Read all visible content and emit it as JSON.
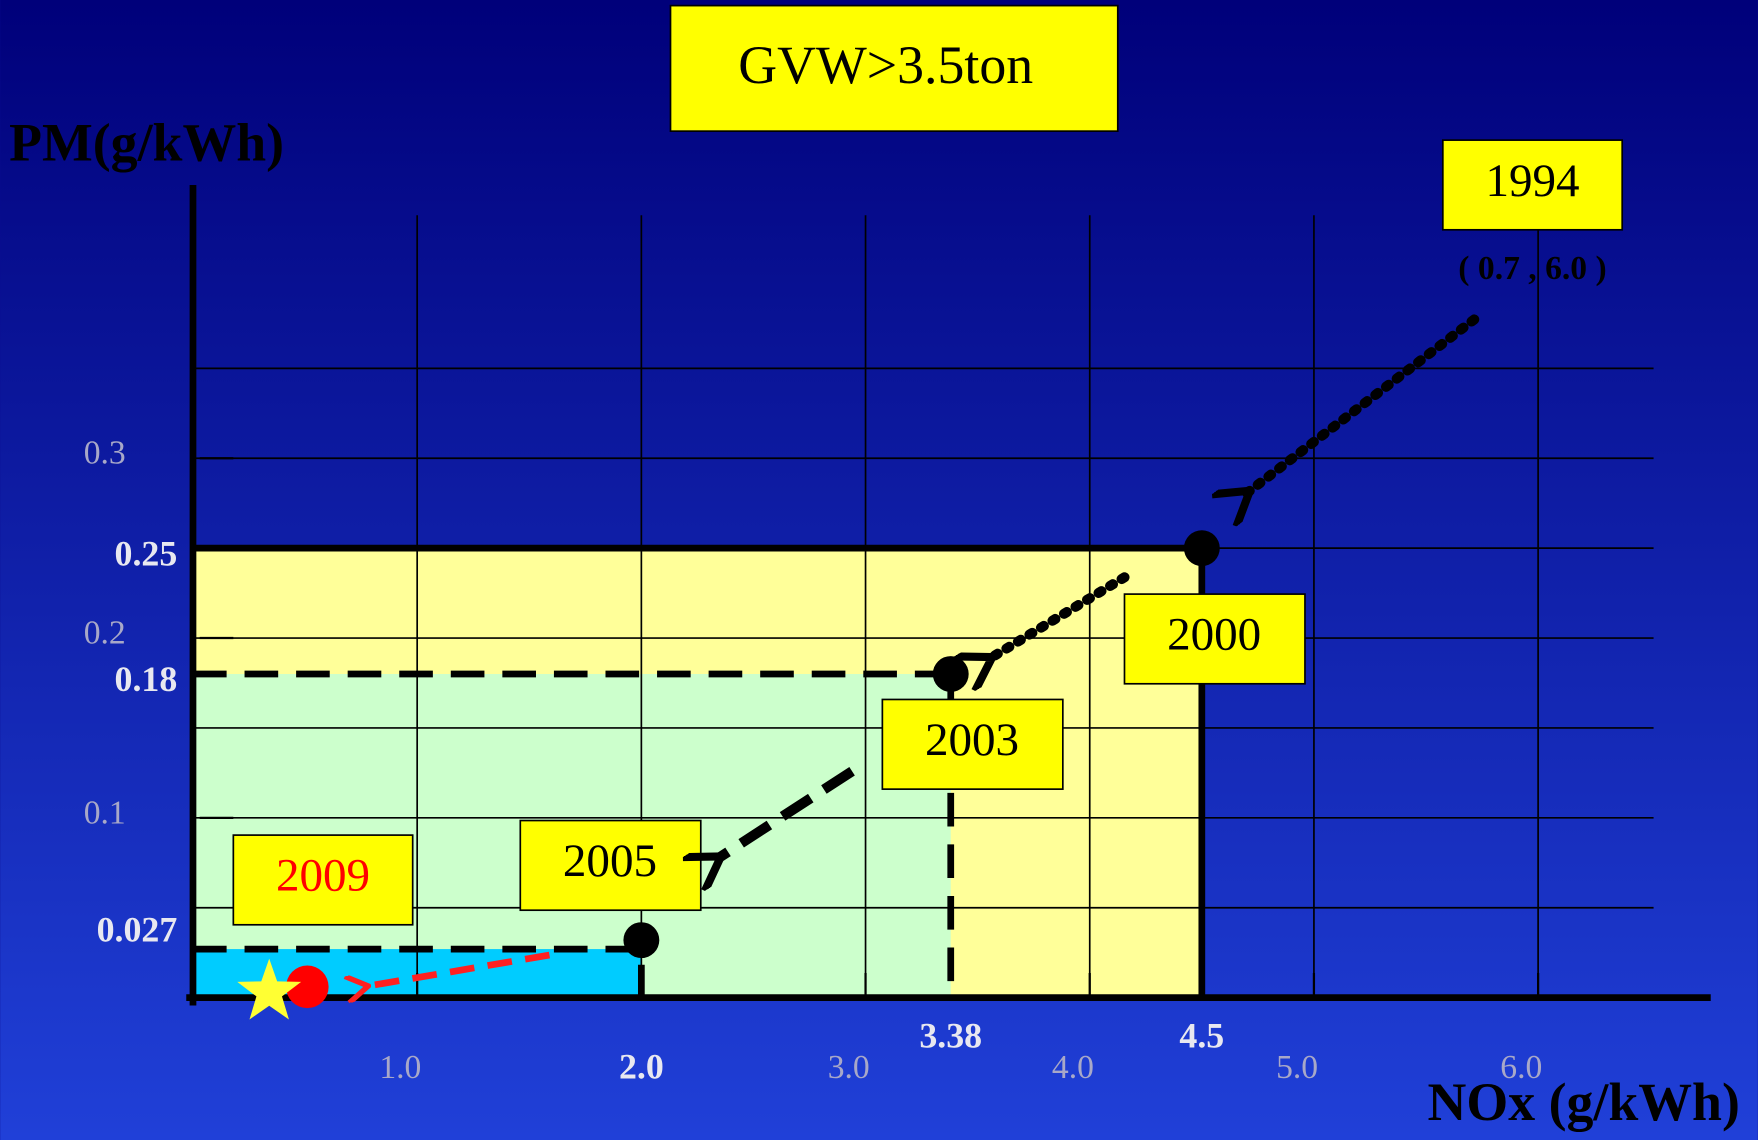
{
  "chart_data": {
    "type": "regulation",
    "title": "GVW>3.5ton",
    "y_label": "PM(g/kWh)",
    "x_label": "NOx (g/kWh)",
    "xlim": [
      0,
      6.77
    ],
    "ylim": [
      0,
      0.452
    ],
    "xticks": [
      {
        "value": 1,
        "label": "1.0"
      },
      {
        "value": 3,
        "label": "3.0"
      },
      {
        "value": 4,
        "label": "4.0"
      },
      {
        "value": 5,
        "label": "5.0"
      },
      {
        "value": 6,
        "label": "6.0"
      }
    ],
    "limit_xticks": [
      {
        "value": 2,
        "label": "2.0"
      },
      3.38,
      4.5
    ],
    "yticks": [
      0.3,
      0.2,
      0.1
    ],
    "limit_yticks": [
      0.25,
      0.18,
      0.027
    ],
    "xgrid": [
      1,
      2,
      3,
      4,
      5,
      6
    ],
    "ygrid": [
      0.05,
      0.1,
      0.15,
      0.2,
      0.25,
      0.3,
      0.35
    ],
    "limits": [
      {
        "name": "2000",
        "nox": 4.5,
        "pm": 0.25,
        "color": "#ffff99"
      },
      {
        "name": "2003",
        "nox": 3.38,
        "pm": 0.18,
        "color": "#ccffcc"
      },
      {
        "name": "2005",
        "nox": 2.0,
        "pm": 0.027,
        "color": "#00ccff"
      }
    ],
    "points": [
      {
        "name": "2009",
        "nox": 0.51,
        "pm": 0.006,
        "color": "#ff0000"
      },
      {
        "nox": 0.34,
        "pm": 0.003,
        "color": "#ffff33"
      }
    ],
    "annotation_1994": {
      "name": "1994",
      "text": "( 0.7 ,  6.0 )"
    }
  }
}
